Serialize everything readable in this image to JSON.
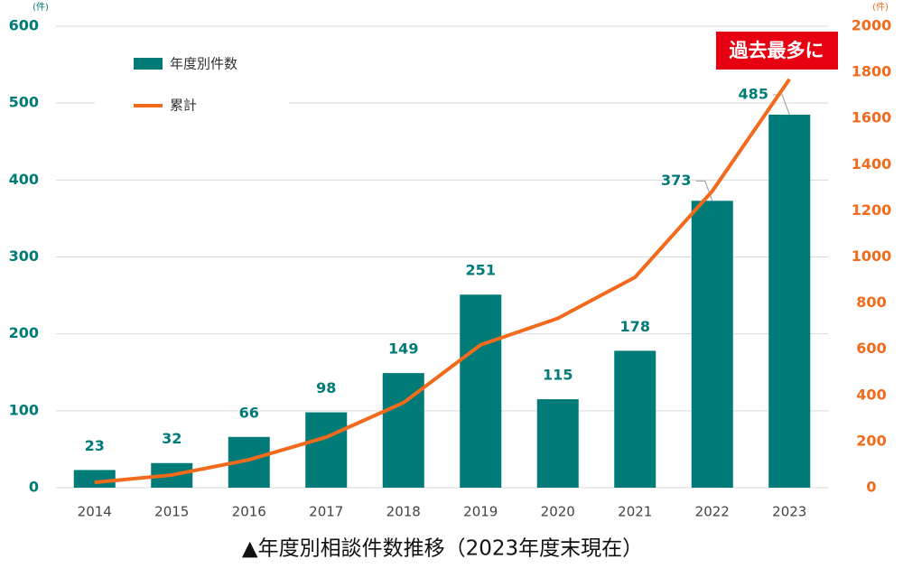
{
  "chart_data": {
    "type": "bar",
    "title": "▲年度別相談件数推移（2023年度末現在）",
    "y_unit": "(件)",
    "y2_unit": "(件)",
    "annotation": "過去最多に",
    "categories": [
      "2014",
      "2015",
      "2016",
      "2017",
      "2018",
      "2019",
      "2020",
      "2021",
      "2022",
      "2023"
    ],
    "series": [
      {
        "name": "年度別件数",
        "type": "bar",
        "color": "#007b78",
        "values": [
          23,
          32,
          66,
          98,
          149,
          251,
          115,
          178,
          373,
          485
        ]
      },
      {
        "name": "累計",
        "type": "line",
        "axis": "y2",
        "color": "#f26a1b",
        "values": [
          23,
          55,
          121,
          219,
          368,
          619,
          734,
          912,
          1285,
          1770
        ]
      }
    ],
    "ylim": [
      0,
      600
    ],
    "yticks": [
      0,
      100,
      200,
      300,
      400,
      500,
      600
    ],
    "y2lim": [
      0,
      2000
    ],
    "y2ticks": [
      0,
      200,
      400,
      600,
      800,
      1000,
      1200,
      1400,
      1600,
      1800,
      2000
    ],
    "grid": true
  }
}
